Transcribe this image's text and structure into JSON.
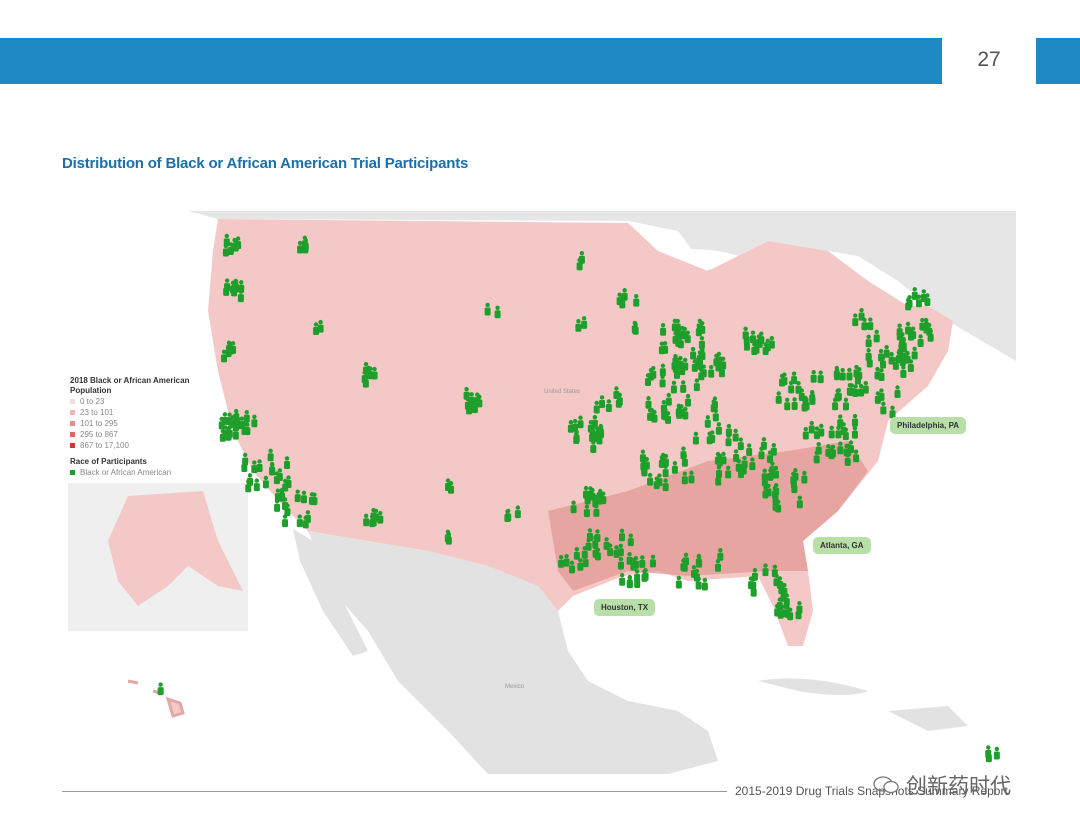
{
  "page_number": "27",
  "title": "Distribution of Black or African American Trial Participants",
  "legend": {
    "title_line1": "2018 Black or African American",
    "title_line2": "Population",
    "items": [
      {
        "label": "0 to 23",
        "color": "#f6dcdc"
      },
      {
        "label": "23 to 101",
        "color": "#f0b7b5"
      },
      {
        "label": "101 to 295",
        "color": "#e98d8a"
      },
      {
        "label": "295 to 867",
        "color": "#df6561"
      },
      {
        "label": "867 to 17,100",
        "color": "#c83a36"
      }
    ],
    "race_title": "Race of Participants",
    "race_item": {
      "label": "Black or African American",
      "color": "#1e9e2a"
    }
  },
  "map_labels": {
    "country_us": "United States",
    "country_mx": "Mexico"
  },
  "callouts": {
    "philadelphia": "Philadelphia, PA",
    "atlanta": "Atlanta, GA",
    "houston": "Houston, TX"
  },
  "footer": "2015-2019 Drug Trials Snapshots Summary Report",
  "watermark": "创新药时代",
  "colors": {
    "accent_bar": "#1e88c4",
    "title": "#1c6fa8",
    "marker": "#1e9e2a",
    "callout_bg": "#b9dfa9"
  }
}
